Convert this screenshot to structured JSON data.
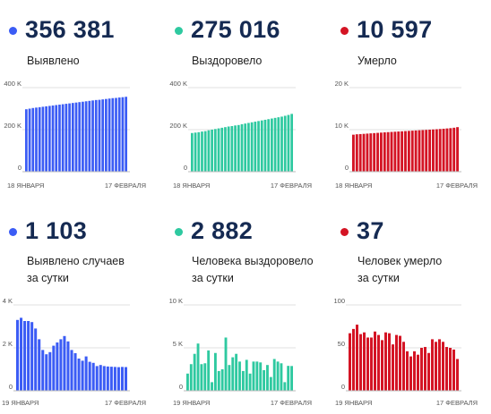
{
  "panels": [
    {
      "value": "356 381",
      "label": [
        "Выявлено"
      ],
      "color": "#3b5cf5"
    },
    {
      "value": "275 016",
      "label": [
        "Выздоровело"
      ],
      "color": "#2ec9a0"
    },
    {
      "value": "10 597",
      "label": [
        "Умерло"
      ],
      "color": "#d41424"
    },
    {
      "value": "1 103",
      "label": [
        "Выявлено случаев",
        "за сутки"
      ],
      "color": "#3b5cf5"
    },
    {
      "value": "2 882",
      "label": [
        "Человека выздоровело",
        "за сутки"
      ],
      "color": "#2ec9a0"
    },
    {
      "value": "37",
      "label": [
        "Человек умерло",
        "за сутки"
      ],
      "color": "#d41424"
    }
  ],
  "chart_data": [
    {
      "type": "bar",
      "title": "",
      "ylim": [
        0,
        400000
      ],
      "yticks": [
        "400 K",
        "200 K",
        "0"
      ],
      "x_start_label": "18 ЯНВАРЯ",
      "x_end_label": "17 ФЕВРАЛЯ",
      "color": "#3b5cf5",
      "values": [
        297000,
        300000,
        303000,
        305000,
        307000,
        309000,
        311000,
        313000,
        315000,
        317000,
        319000,
        321000,
        323000,
        325000,
        327000,
        329000,
        331000,
        333000,
        335000,
        337000,
        339000,
        341000,
        342000,
        344000,
        346000,
        348000,
        350000,
        351000,
        353000,
        354500,
        356381
      ]
    },
    {
      "type": "bar",
      "title": "",
      "ylim": [
        0,
        400000
      ],
      "yticks": [
        "400 K",
        "200 K",
        "0"
      ],
      "x_start_label": "18 ЯНВАРЯ",
      "x_end_label": "17 ФЕВРАЛЯ",
      "color": "#2ec9a0",
      "values": [
        184000,
        186000,
        188000,
        191000,
        193000,
        197000,
        200000,
        203000,
        206000,
        209000,
        212000,
        215000,
        217000,
        220000,
        222000,
        226000,
        229000,
        232000,
        235000,
        238000,
        241000,
        244000,
        247000,
        250000,
        253000,
        256000,
        259000,
        262000,
        266000,
        270000,
        275016
      ]
    },
    {
      "type": "bar",
      "title": "",
      "ylim": [
        0,
        20000
      ],
      "yticks": [
        "20 K",
        "10 K",
        "0"
      ],
      "x_start_label": "18 ЯНВАРЯ",
      "x_end_label": "17 ФЕВРАЛЯ",
      "color": "#d41424",
      "values": [
        8800,
        8900,
        8950,
        9000,
        9060,
        9120,
        9180,
        9240,
        9300,
        9360,
        9410,
        9460,
        9510,
        9560,
        9610,
        9660,
        9710,
        9760,
        9810,
        9860,
        9900,
        9950,
        10000,
        10050,
        10100,
        10160,
        10220,
        10290,
        10360,
        10460,
        10597
      ]
    },
    {
      "type": "bar",
      "title": "",
      "ylim": [
        0,
        4000
      ],
      "yticks": [
        "4 K",
        "2 K",
        "0"
      ],
      "x_start_label": "19 ЯНВАРЯ",
      "x_end_label": "17 ФЕВРАЛЯ",
      "color": "#3b5cf5",
      "values": [
        3300,
        3400,
        3250,
        3250,
        3200,
        2900,
        2400,
        1900,
        1700,
        1800,
        2100,
        2250,
        2400,
        2550,
        2300,
        1900,
        1750,
        1500,
        1400,
        1600,
        1350,
        1300,
        1150,
        1200,
        1150,
        1130,
        1120,
        1110,
        1100,
        1110,
        1103
      ]
    },
    {
      "type": "bar",
      "title": "",
      "ylim": [
        0,
        10000
      ],
      "yticks": [
        "10 K",
        "5 K",
        "0"
      ],
      "x_start_label": "19 ЯНВАРЯ",
      "x_end_label": "17 ФЕВРАЛЯ",
      "color": "#2ec9a0",
      "values": [
        2000,
        3100,
        4300,
        5500,
        3100,
        3200,
        4700,
        1000,
        4400,
        2300,
        2500,
        6200,
        3000,
        3900,
        4300,
        3400,
        2300,
        3600,
        2000,
        3400,
        3400,
        3300,
        2400,
        3000,
        1600,
        3700,
        3400,
        3200,
        1000,
        2900,
        2882
      ]
    },
    {
      "type": "bar",
      "title": "",
      "ylim": [
        0,
        100
      ],
      "yticks": [
        "100",
        "50",
        "0"
      ],
      "x_start_label": "19 ЯНВАРЯ",
      "x_end_label": "17 ФЕВРАЛЯ",
      "color": "#d41424",
      "values": [
        67,
        72,
        77,
        66,
        68,
        62,
        62,
        69,
        65,
        59,
        68,
        67,
        54,
        65,
        64,
        57,
        46,
        40,
        46,
        42,
        50,
        51,
        44,
        60,
        57,
        60,
        57,
        51,
        50,
        48,
        37
      ]
    }
  ]
}
